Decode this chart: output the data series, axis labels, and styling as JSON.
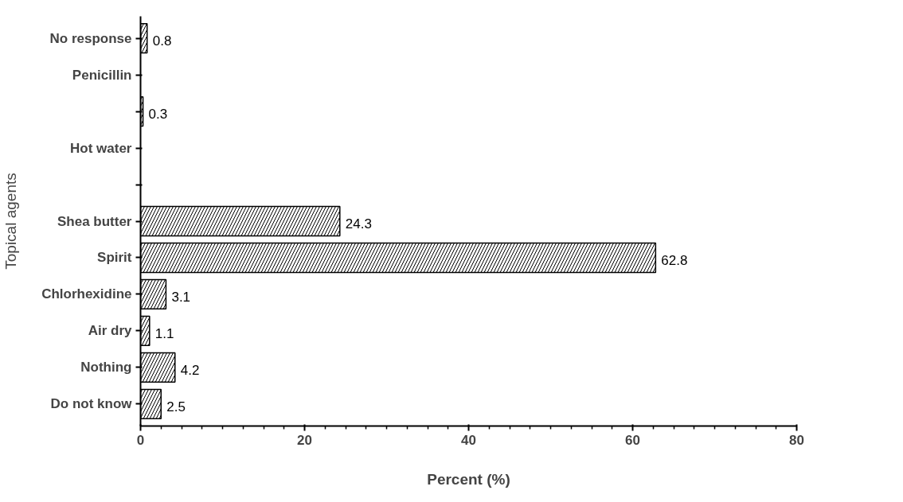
{
  "chart_data": {
    "type": "bar",
    "orientation": "horizontal",
    "xlabel": "Percent (%)",
    "ylabel": "Topical agents",
    "categories": [
      "No response",
      "Penicillin",
      null,
      "Hot water",
      null,
      "Shea butter",
      "Spirit",
      "Chlorhexidine",
      "Air dry",
      "Nothing",
      "Do not know"
    ],
    "values": [
      0.8,
      null,
      0.3,
      null,
      null,
      24.3,
      62.8,
      3.1,
      1.1,
      4.2,
      2.5
    ],
    "value_labels": [
      "0.8",
      null,
      "0.3",
      null,
      null,
      "24.3",
      "62.8",
      "3.1",
      "1.1",
      "4.2",
      "2.5"
    ],
    "color": "#000000",
    "xlim": [
      0,
      80
    ],
    "xticks": [
      0,
      20,
      40,
      60,
      80
    ],
    "grid": false
  }
}
